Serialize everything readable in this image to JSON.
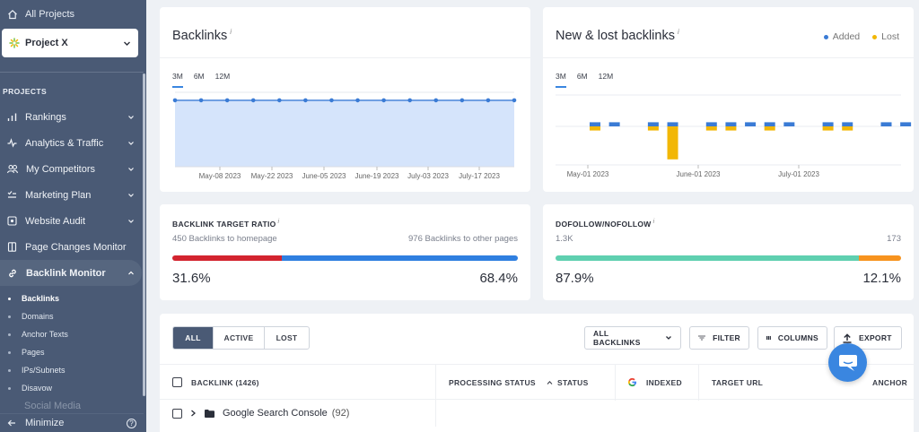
{
  "sidebar": {
    "all_projects": "All Projects",
    "project_name": "Project X",
    "section": "PROJECTS",
    "items": [
      {
        "label": "Rankings",
        "icon": "bar-chart-icon",
        "has_chevron": true
      },
      {
        "label": "Analytics & Traffic",
        "icon": "pulse-icon",
        "has_chevron": true
      },
      {
        "label": "My Competitors",
        "icon": "people-icon",
        "has_chevron": true
      },
      {
        "label": "Marketing Plan",
        "icon": "checklist-icon",
        "has_chevron": true
      },
      {
        "label": "Website Audit",
        "icon": "audit-icon",
        "has_chevron": true
      },
      {
        "label": "Page Changes Monitor",
        "icon": "page-icon",
        "has_chevron": false
      },
      {
        "label": "Backlink Monitor",
        "icon": "link-icon",
        "has_chevron": true,
        "expanded": true
      }
    ],
    "sub_items": [
      "Backlinks",
      "Domains",
      "Anchor Texts",
      "Pages",
      "IPs/Subnets",
      "Disavow"
    ],
    "active_sub": "Backlinks",
    "ghost_item": "Social Media",
    "minimize": "Minimize",
    "help_glyph": "?"
  },
  "backlinks_card": {
    "title": "Backlinks",
    "info": "i",
    "ranges": [
      "3M",
      "6M",
      "12M"
    ],
    "active_range": "3M"
  },
  "new_lost_card": {
    "title": "New & lost backlinks",
    "info": "i",
    "ranges": [
      "3M",
      "6M",
      "12M"
    ],
    "active_range": "3M",
    "legend": [
      {
        "label": "Added",
        "color": "#3a7bd5"
      },
      {
        "label": "Lost",
        "color": "#f2b705"
      }
    ]
  },
  "target_ratio": {
    "title": "BACKLINK TARGET RATIO",
    "info": "i",
    "left_label": "450 Backlinks to homepage",
    "right_label": "976 Backlinks to other pages",
    "left_pct": "31.6%",
    "right_pct": "68.4%",
    "left_fraction": 0.316,
    "left_color": "#d3242f",
    "right_color": "#2f7fe0"
  },
  "dofollow": {
    "title": "DOFOLLOW/NOFOLLOW",
    "info": "i",
    "left_label": "1.3K",
    "right_label": "173",
    "left_pct": "87.9%",
    "right_pct": "12.1%",
    "left_fraction": 0.879,
    "left_color": "#5fd0b0",
    "right_color": "#f7931e"
  },
  "table": {
    "filters": [
      "ALL",
      "ACTIVE",
      "LOST"
    ],
    "active_filter": "ALL",
    "dropdown": "ALL BACKLINKS",
    "filter_btn": "FILTER",
    "columns_btn": "COLUMNS",
    "export_btn": "EXPORT",
    "headers": {
      "backlink": "BACKLINK (1426)",
      "processing": "PROCESSING STATUS",
      "status": "STATUS",
      "indexed": "INDEXED",
      "target_url": "TARGET URL",
      "anchor": "ANCHOR"
    },
    "rows": [
      {
        "name": "Google Search Console",
        "count": "(92)"
      }
    ]
  },
  "chart_data": [
    {
      "type": "area",
      "title": "Backlinks",
      "x_ticks": [
        "May-08 2023",
        "May-22 2023",
        "June-05 2023",
        "June-19 2023",
        "July-03 2023",
        "July-17 2023"
      ],
      "points": 14,
      "values": [
        1426,
        1426,
        1426,
        1426,
        1426,
        1426,
        1426,
        1426,
        1426,
        1426,
        1426,
        1426,
        1426,
        1426
      ],
      "grid": true,
      "color": "#3a7bd5"
    },
    {
      "type": "bar",
      "title": "New & lost backlinks",
      "x_ticks": [
        "May-01 2023",
        "June-01 2023",
        "July-01 2023"
      ],
      "series": [
        {
          "name": "Added",
          "color": "#3a7bd5",
          "values": [
            2,
            2,
            0,
            2,
            2,
            0,
            2,
            2,
            2,
            2,
            2,
            0,
            2,
            2,
            0,
            2,
            2
          ]
        },
        {
          "name": "Lost",
          "color": "#f2b705",
          "values": [
            -2,
            0,
            0,
            -2,
            -16,
            0,
            -2,
            -2,
            0,
            -2,
            0,
            0,
            -2,
            -2,
            0,
            0,
            0
          ]
        }
      ],
      "grid": true,
      "legend": "top-right"
    }
  ]
}
